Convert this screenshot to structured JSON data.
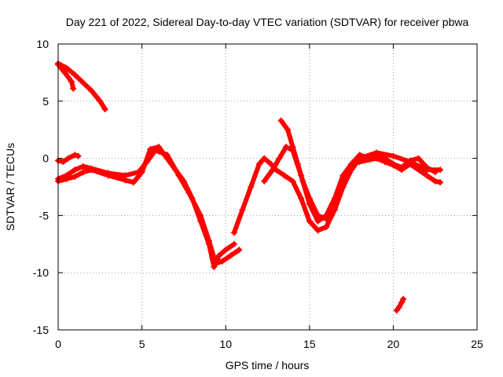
{
  "chart_data": {
    "type": "scatter",
    "title": "Day 221 of 2022, Sidereal Day-to-day VTEC variation (SDTVAR) for receiver pbwa",
    "xlabel": "GPS time / hours",
    "ylabel": "SDTVAR / TECUs",
    "xlim": [
      0,
      25
    ],
    "ylim": [
      -15,
      10
    ],
    "xticks": [
      0,
      5,
      10,
      15,
      20,
      25
    ],
    "yticks": [
      -15,
      -10,
      -5,
      0,
      5,
      10
    ],
    "xtick_labels": [
      "0",
      "5",
      "10",
      "15",
      "20",
      "25"
    ],
    "ytick_labels": [
      "-15",
      "-10",
      "-5",
      "0",
      "5",
      "10"
    ],
    "grid": true,
    "marker": "+",
    "series_color": "#ff0000",
    "series": [
      {
        "name": "track-1",
        "x": [
          0.0,
          0.5,
          1.0,
          1.5,
          2.0,
          2.5,
          2.8
        ],
        "y": [
          8.3,
          7.9,
          7.3,
          6.6,
          5.9,
          5.0,
          4.3
        ]
      },
      {
        "name": "track-2",
        "x": [
          0.0,
          0.4,
          0.8,
          0.9
        ],
        "y": [
          8.2,
          7.5,
          6.7,
          6.1
        ]
      },
      {
        "name": "track-3",
        "x": [
          0.0,
          0.5,
          1.0,
          1.5,
          2.0,
          3.0,
          4.0,
          4.8,
          5.3,
          5.8,
          6.5,
          7.2,
          7.8,
          8.5,
          9.0,
          9.4,
          9.8,
          10.3,
          10.8
        ],
        "y": [
          -1.8,
          -1.5,
          -1.0,
          -0.7,
          -0.9,
          -1.3,
          -1.5,
          -1.2,
          -0.3,
          0.7,
          0.3,
          -1.5,
          -3.0,
          -5.0,
          -7.2,
          -9.2,
          -9.0,
          -8.5,
          -8.0
        ]
      },
      {
        "name": "track-4",
        "x": [
          0.0,
          0.5,
          1.0,
          1.5,
          2.0,
          3.0,
          4.0,
          4.5,
          5.0,
          5.5,
          6.0,
          6.5,
          7.0,
          7.5,
          8.0,
          8.5,
          9.0,
          9.3,
          9.6,
          10.0,
          10.5
        ],
        "y": [
          -2.0,
          -1.8,
          -1.6,
          -1.2,
          -1.0,
          -1.5,
          -1.9,
          -2.1,
          -1.2,
          0.8,
          1.0,
          0.0,
          -1.0,
          -2.0,
          -3.5,
          -5.5,
          -7.5,
          -9.5,
          -8.5,
          -8.0,
          -7.5
        ]
      },
      {
        "name": "track-5",
        "x": [
          0.0,
          0.3,
          0.6,
          1.0,
          1.2
        ],
        "y": [
          -0.2,
          -0.3,
          0.0,
          0.3,
          0.2
        ]
      },
      {
        "name": "track-6",
        "x": [
          10.5,
          11.0,
          11.5,
          12.0,
          12.3,
          12.7,
          13.0,
          13.5,
          14.0,
          14.5,
          15.0,
          15.5,
          16.0,
          16.5,
          17.0,
          17.5,
          18.0,
          18.5
        ],
        "y": [
          -6.5,
          -4.5,
          -2.5,
          -0.5,
          0.0,
          -0.5,
          -1.0,
          -1.5,
          -2.0,
          -3.5,
          -5.5,
          -6.3,
          -6.0,
          -4.5,
          -2.5,
          -0.5,
          0.3,
          0.0
        ]
      },
      {
        "name": "track-7",
        "x": [
          12.3,
          12.8,
          13.2,
          13.6,
          14.0,
          14.5,
          15.0,
          15.5,
          16.0,
          16.5,
          17.0,
          17.5,
          18.0,
          19.0,
          20.0,
          21.0,
          22.0,
          22.8
        ],
        "y": [
          -2.0,
          -1.0,
          0.0,
          1.0,
          0.7,
          -1.5,
          -4.0,
          -5.5,
          -5.0,
          -3.5,
          -1.5,
          -0.5,
          0.0,
          0.5,
          0.2,
          -0.3,
          -1.0,
          -1.0
        ]
      },
      {
        "name": "track-8",
        "x": [
          13.3,
          13.7,
          14.0,
          14.3,
          14.6,
          15.0,
          15.5,
          16.0,
          16.5,
          17.0,
          17.5,
          18.0,
          19.0,
          19.5,
          20.0,
          20.5,
          21.0,
          21.5,
          22.0,
          22.5
        ],
        "y": [
          3.3,
          2.5,
          1.0,
          -0.5,
          -2.0,
          -3.5,
          -5.0,
          -5.3,
          -4.5,
          -2.5,
          -1.0,
          0.0,
          0.3,
          0.0,
          -0.5,
          -0.8,
          -0.2,
          0.0,
          -0.8,
          -1.2
        ]
      },
      {
        "name": "track-9",
        "x": [
          17.5,
          18.0,
          19.0,
          19.5,
          20.0,
          20.5,
          21.0,
          22.0,
          22.5,
          22.8
        ],
        "y": [
          -0.5,
          -0.3,
          0.0,
          -0.3,
          -0.6,
          -1.0,
          -0.5,
          -1.5,
          -2.0,
          -2.1
        ]
      },
      {
        "name": "track-10",
        "x": [
          20.2,
          20.35,
          20.5,
          20.6
        ],
        "y": [
          -13.3,
          -13.0,
          -12.6,
          -12.3
        ]
      }
    ]
  }
}
